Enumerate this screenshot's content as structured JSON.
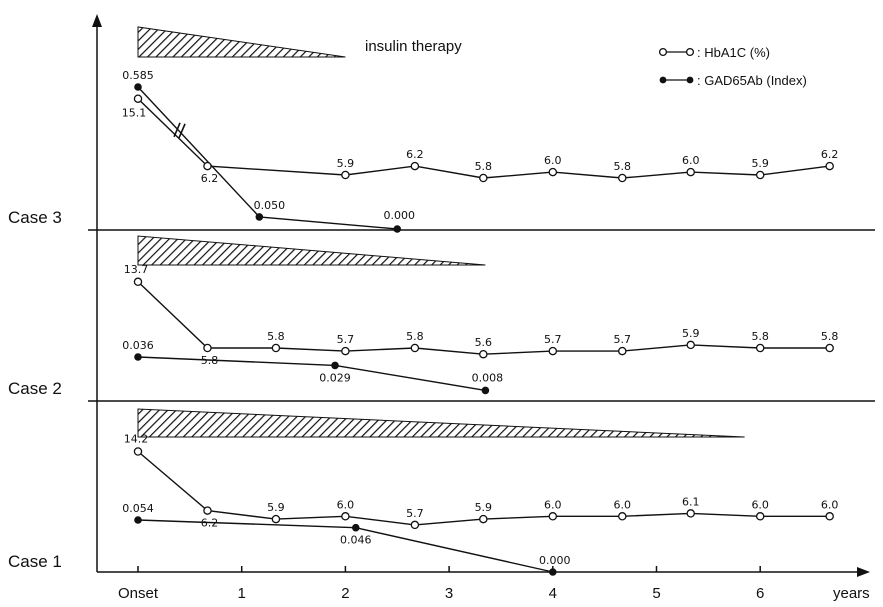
{
  "chart_data": {
    "type": "line",
    "xlabel": "years",
    "x_ticks": [
      "Onset",
      "1",
      "2",
      "3",
      "4",
      "5",
      "6"
    ],
    "legend": [
      {
        "marker": "open-circle",
        "label": ": HbA1C (%)"
      },
      {
        "marker": "filled-circle",
        "label": ": GAD65Ab (Index)"
      }
    ],
    "therapy_label": "insulin therapy",
    "legend_position": "top-right",
    "panels": [
      {
        "case": "Case 3",
        "therapy_end_years": 2.0,
        "hba1c": {
          "x": [
            0,
            0.67,
            2.0,
            2.67,
            3.33,
            4.0,
            4.67,
            5.33,
            6.0,
            6.67
          ],
          "values": [
            15.1,
            6.2,
            5.9,
            6.2,
            5.8,
            6.0,
            5.8,
            6.0,
            5.9,
            6.2
          ],
          "labels": [
            "15.1",
            "6.2",
            "5.9",
            "6.2",
            "5.8",
            "6.0",
            "5.8",
            "6.0",
            "5.9",
            "6.2"
          ]
        },
        "gad65ab": {
          "x": [
            0,
            1.17,
            2.5
          ],
          "values": [
            0.585,
            0.05,
            0.0
          ],
          "labels": [
            "0.585",
            "0.050",
            "0.000"
          ],
          "axis_break": true
        }
      },
      {
        "case": "Case 2",
        "therapy_end_years": 3.35,
        "hba1c": {
          "x": [
            0,
            0.67,
            1.33,
            2.0,
            2.67,
            3.33,
            4.0,
            4.67,
            5.33,
            6.0,
            6.67
          ],
          "values": [
            13.7,
            5.8,
            5.8,
            5.7,
            5.8,
            5.6,
            5.7,
            5.7,
            5.9,
            5.8,
            5.8
          ],
          "labels": [
            "13.7",
            "5.8",
            "5.8",
            "5.7",
            "5.8",
            "5.6",
            "5.7",
            "5.7",
            "5.9",
            "5.8",
            "5.8"
          ]
        },
        "gad65ab": {
          "x": [
            0,
            1.9,
            3.35
          ],
          "values": [
            0.036,
            0.029,
            0.008
          ],
          "labels": [
            "0.036",
            "0.029",
            "0.008"
          ]
        }
      },
      {
        "case": "Case 1",
        "therapy_end_years": 5.85,
        "hba1c": {
          "x": [
            0,
            0.67,
            1.33,
            2.0,
            2.67,
            3.33,
            4.0,
            4.67,
            5.33,
            6.0,
            6.67
          ],
          "values": [
            14.2,
            6.2,
            5.9,
            6.0,
            5.7,
            5.9,
            6.0,
            6.0,
            6.1,
            6.0,
            6.0
          ],
          "labels": [
            "14.2",
            "6.2",
            "5.9",
            "6.0",
            "5.7",
            "5.9",
            "6.0",
            "6.0",
            "6.1",
            "6.0",
            "6.0"
          ]
        },
        "gad65ab": {
          "x": [
            0,
            2.1,
            4.0
          ],
          "values": [
            0.054,
            0.046,
            0.0
          ],
          "labels": [
            "0.054",
            "0.046",
            "0.000"
          ]
        }
      }
    ]
  }
}
